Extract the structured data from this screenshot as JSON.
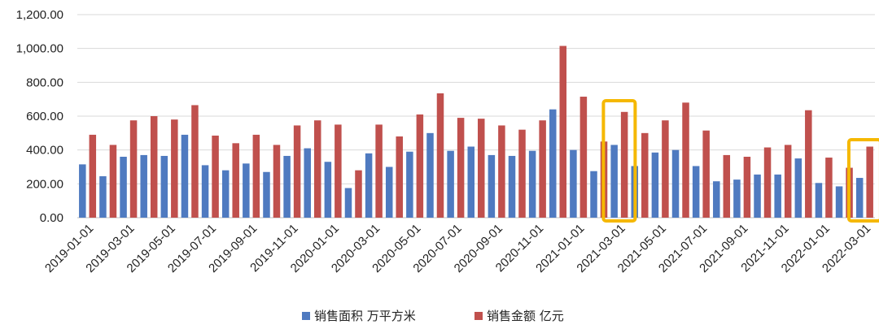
{
  "chart_data": {
    "type": "bar",
    "title": "",
    "xlabel": "",
    "ylabel": "",
    "ylim": [
      0,
      1200
    ],
    "y_ticks": [
      "0.00",
      "200.00",
      "400.00",
      "600.00",
      "800.00",
      "1,000.00",
      "1,200.00"
    ],
    "grid": "horizontal",
    "legend_position": "bottom",
    "categories": [
      "2019-01-01",
      "2019-02-01",
      "2019-03-01",
      "2019-04-01",
      "2019-05-01",
      "2019-06-01",
      "2019-07-01",
      "2019-08-01",
      "2019-09-01",
      "2019-10-01",
      "2019-11-01",
      "2019-12-01",
      "2020-01-01",
      "2020-02-01",
      "2020-03-01",
      "2020-04-01",
      "2020-05-01",
      "2020-06-01",
      "2020-07-01",
      "2020-08-01",
      "2020-09-01",
      "2020-10-01",
      "2020-11-01",
      "2020-12-01",
      "2021-01-01",
      "2021-02-01",
      "2021-03-01",
      "2021-04-01",
      "2021-05-01",
      "2021-06-01",
      "2021-07-01",
      "2021-08-01",
      "2021-09-01",
      "2021-10-01",
      "2021-11-01",
      "2021-12-01",
      "2022-01-01",
      "2022-02-01",
      "2022-03-01"
    ],
    "x_tick_labels": [
      "2019-01-01",
      "2019-03-01",
      "2019-05-01",
      "2019-07-01",
      "2019-09-01",
      "2019-11-01",
      "2020-01-01",
      "2020-03-01",
      "2020-05-01",
      "2020-07-01",
      "2020-09-01",
      "2020-11-01",
      "2021-01-01",
      "2021-03-01",
      "2021-05-01",
      "2021-07-01",
      "2021-09-01",
      "2021-11-01",
      "2022-01-01",
      "2022-03-01"
    ],
    "series": [
      {
        "name": "销售面积 万平方米",
        "color": "#4f7ac0",
        "values": [
          315,
          245,
          360,
          370,
          365,
          490,
          310,
          280,
          320,
          270,
          365,
          410,
          330,
          175,
          380,
          300,
          390,
          500,
          395,
          420,
          370,
          365,
          395,
          640,
          400,
          275,
          430,
          305,
          385,
          400,
          305,
          215,
          225,
          255,
          255,
          350,
          205,
          185,
          235
        ]
      },
      {
        "name": "销售金额 亿元",
        "color": "#c0504d",
        "values": [
          490,
          430,
          575,
          600,
          580,
          665,
          485,
          440,
          490,
          430,
          545,
          575,
          550,
          280,
          550,
          480,
          610,
          735,
          590,
          585,
          545,
          520,
          575,
          1015,
          715,
          450,
          625,
          500,
          575,
          680,
          515,
          370,
          360,
          415,
          430,
          635,
          355,
          295,
          420
        ]
      }
    ],
    "highlights": [
      {
        "category": "2021-03-01",
        "color": "#f5b800"
      },
      {
        "category": "2022-03-01",
        "color": "#f5b800"
      }
    ]
  }
}
